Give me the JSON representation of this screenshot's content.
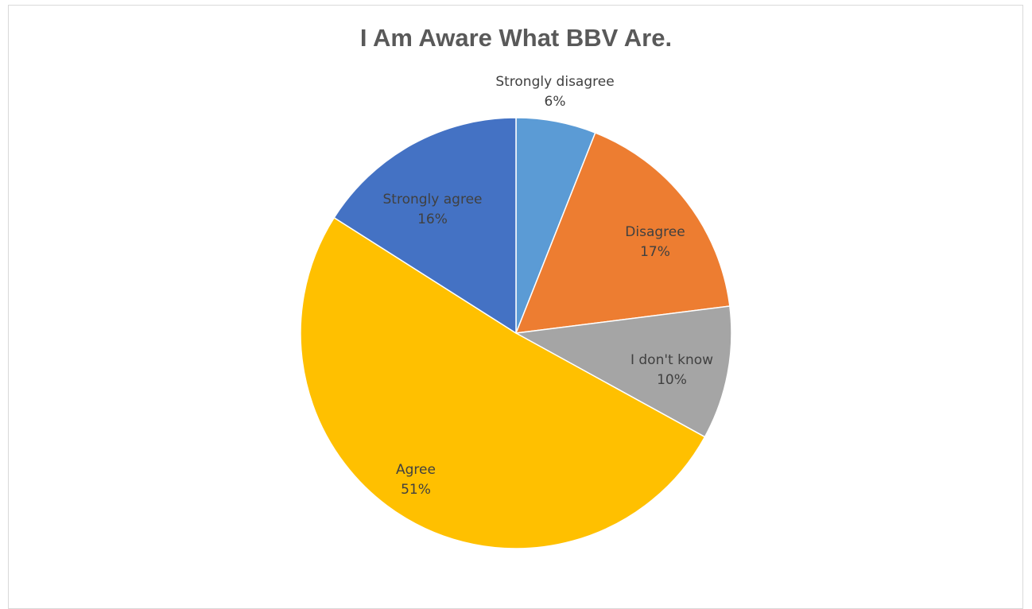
{
  "chart_data": {
    "type": "pie",
    "title": "I Am Aware What BBV Are.",
    "slices": [
      {
        "category": "Strongly disagree",
        "value": 6,
        "label": "6%",
        "color": "#5B9BD5",
        "label_color": "#404040"
      },
      {
        "category": "Disagree",
        "value": 17,
        "label": "17%",
        "color": "#ED7D31",
        "label_color": "#404040"
      },
      {
        "category": "I don't know",
        "value": 10,
        "label": "10%",
        "color": "#A5A5A5",
        "label_color": "#404040"
      },
      {
        "category": "Agree",
        "value": 51,
        "label": "51%",
        "color": "#FFC000",
        "label_color": "#404040"
      },
      {
        "category": "Strongly agree",
        "value": 16,
        "label": "16%",
        "color": "#4472C4",
        "label_color": "#404040"
      }
    ],
    "start": "12 o'clock",
    "direction": "clockwise",
    "legend": "none",
    "data_labels": "category and percent"
  }
}
